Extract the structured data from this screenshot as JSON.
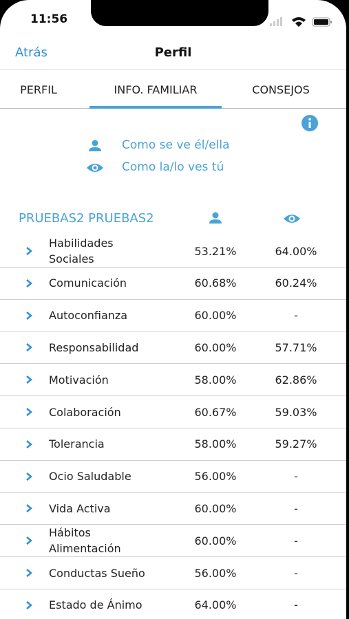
{
  "status_bar": {
    "time": "11:56"
  },
  "nav": {
    "back": "Atrás",
    "title": "Perfil"
  },
  "tabs": [
    "PERFIL",
    "INFO. FAMILIAR",
    "CONSEJOS"
  ],
  "legend": [
    "Como se ve él/ella",
    "Como la/lo ves tú"
  ],
  "table": {
    "header": "PRUEBAS2 PRUEBAS2",
    "rows": [
      [
        "Habilidades\nSociales",
        "53.21%",
        "64.00%"
      ],
      [
        "Comunicación",
        "60.68%",
        "60.24%"
      ],
      [
        "Autoconfianza",
        "60.00%",
        "-"
      ],
      [
        "Responsabilidad",
        "60.00%",
        "57.71%"
      ],
      [
        "Motivación",
        "58.00%",
        "62.86%"
      ],
      [
        "Colaboración",
        "60.67%",
        "59.03%"
      ],
      [
        "Tolerancia",
        "58.00%",
        "59.27%"
      ],
      [
        "Ocio Saludable",
        "56.00%",
        "-"
      ],
      [
        "Vida Activa",
        "60.00%",
        "-"
      ],
      [
        "Hábitos\nAlimentación",
        "60.00%",
        "-"
      ],
      [
        "Conductas Sueño",
        "56.00%",
        "-"
      ],
      [
        "Estado de Ánimo",
        "64.00%",
        "-"
      ]
    ]
  }
}
